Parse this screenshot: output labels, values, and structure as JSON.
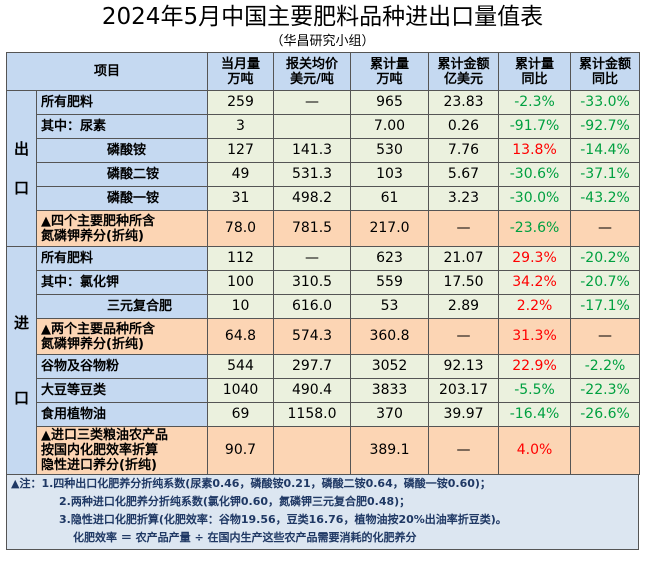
{
  "title": "2024年5月中国主要肥料品种进出口量值表",
  "subtitle": "（华昌研究小组）",
  "table": {
    "header": [
      [
        "项目"
      ],
      [
        "当月量",
        "万吨"
      ],
      [
        "报关均价",
        "美元/吨"
      ],
      [
        "累计量",
        "万吨"
      ],
      [
        "累计金额",
        "亿美元"
      ],
      [
        "累计量",
        "同比"
      ],
      [
        "累计金额",
        "同比"
      ]
    ],
    "sections": [
      {
        "label": "出口",
        "rows": [
          {
            "item": [
              "所有肥料"
            ],
            "indent": false,
            "highlight": false,
            "cells": [
              "259",
              "—",
              "965",
              "23.83",
              "-2.3%",
              "-33.0%"
            ]
          },
          {
            "item": [
              "其中：尿素"
            ],
            "indent": false,
            "highlight": false,
            "cells": [
              "3",
              null,
              "7.00",
              "0.26",
              "-91.7%",
              "-92.7%"
            ]
          },
          {
            "item": [
              "磷酸铵"
            ],
            "indent": true,
            "highlight": false,
            "cells": [
              "127",
              "141.3",
              "530",
              "7.76",
              "13.8%",
              "-14.4%"
            ]
          },
          {
            "item": [
              "磷酸二铵"
            ],
            "indent": true,
            "highlight": false,
            "cells": [
              "49",
              "531.3",
              "103",
              "5.67",
              "-30.6%",
              "-37.1%"
            ]
          },
          {
            "item": [
              "磷酸一铵"
            ],
            "indent": true,
            "highlight": false,
            "cells": [
              "31",
              "498.2",
              "61",
              "3.23",
              "-30.0%",
              "-43.2%"
            ]
          },
          {
            "item": [
              "▲四个主要肥种所含",
              "氮磷钾养分(折纯)"
            ],
            "indent": false,
            "highlight": true,
            "cells": [
              "78.0",
              "781.5",
              "217.0",
              "—",
              "-23.6%",
              "—"
            ]
          }
        ]
      },
      {
        "label": "进口",
        "rows": [
          {
            "item": [
              "所有肥料"
            ],
            "indent": false,
            "highlight": false,
            "cells": [
              "112",
              "—",
              "623",
              "21.07",
              "29.3%",
              "-20.2%"
            ]
          },
          {
            "item": [
              "其中：氯化钾"
            ],
            "indent": false,
            "highlight": false,
            "cells": [
              "100",
              "310.5",
              "559",
              "17.50",
              "34.2%",
              "-20.7%"
            ]
          },
          {
            "item": [
              "三元复合肥"
            ],
            "indent": true,
            "highlight": false,
            "cells": [
              "10",
              "616.0",
              "53",
              "2.89",
              "2.2%",
              "-17.1%"
            ]
          },
          {
            "item": [
              "▲两个主要品种所含",
              "氮磷钾养分(折纯)"
            ],
            "indent": false,
            "highlight": true,
            "cells": [
              "64.8",
              "574.3",
              "360.8",
              "—",
              "31.3%",
              "—"
            ]
          },
          {
            "item": [
              "谷物及谷物粉"
            ],
            "indent": false,
            "highlight": false,
            "cells": [
              "544",
              "297.7",
              "3052",
              "92.13",
              "22.9%",
              "-2.2%"
            ]
          },
          {
            "item": [
              "大豆等豆类"
            ],
            "indent": false,
            "highlight": false,
            "cells": [
              "1040",
              "490.4",
              "3833",
              "203.17",
              "-5.5%",
              "-22.3%"
            ]
          },
          {
            "item": [
              "食用植物油"
            ],
            "indent": false,
            "highlight": false,
            "cells": [
              "69",
              "1158.0",
              "370",
              "39.97",
              "-16.4%",
              "-26.6%"
            ]
          },
          {
            "item": [
              "▲进口三类粮油农产品",
              "按国内化肥效率折算",
              "隐性进口养分(折纯)"
            ],
            "indent": false,
            "highlight": true,
            "cells": [
              "90.7",
              null,
              "389.1",
              "—",
              "4.0%",
              null
            ]
          }
        ]
      }
    ]
  },
  "notes": [
    "▲注：1.四种出口化肥养分折纯系数(尿素0.46，磷酸铵0.21，磷酸二铵0.64，磷酸一铵0.60)；",
    "2.两种进口化肥养分折纯系数(氯化钾0.60，氮磷钾三元复合肥0.48)；",
    "3.隐性进口化肥折算(化肥效率：谷物19.56，豆类16.76，植物油按20%出油率折豆类)。",
    "化肥效率 ＝ 农产品产量 ÷ 在国内生产这些农产品需要消耗的化肥养分"
  ]
}
